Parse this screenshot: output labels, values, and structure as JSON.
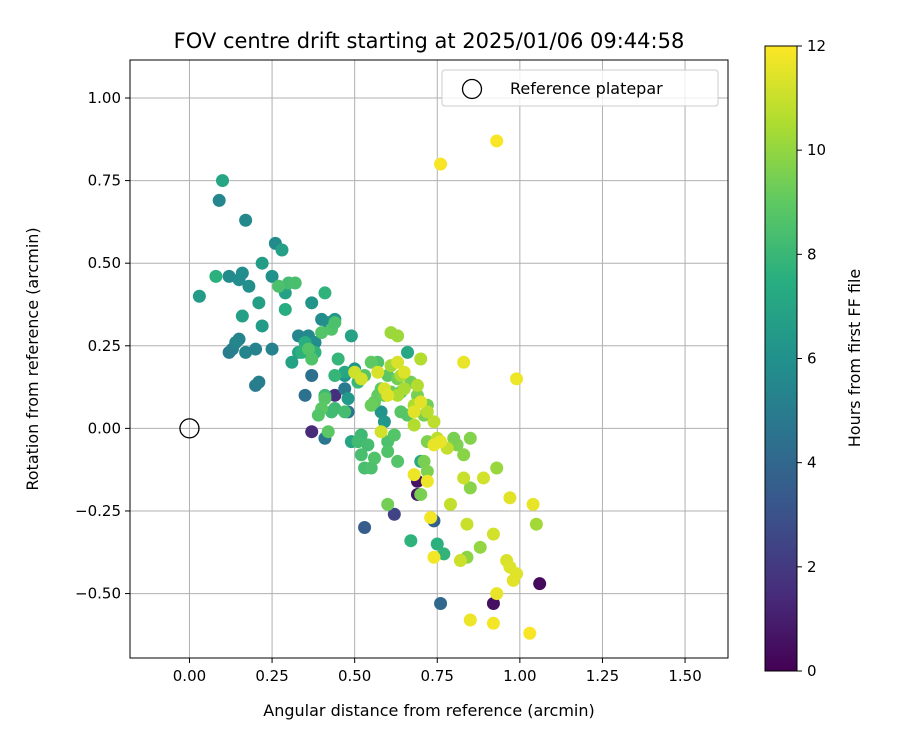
{
  "chart_data": {
    "type": "scatter",
    "title": "FOV centre drift starting at 2025/01/06 09:44:58",
    "xlabel": "Angular distance from reference (arcmin)",
    "ylabel": "Rotation from reference (arcmin)",
    "xlim": [
      -0.18,
      1.63
    ],
    "ylim": [
      -0.695,
      1.115
    ],
    "xticks": [
      0.0,
      0.25,
      0.5,
      0.75,
      1.0,
      1.25,
      1.5
    ],
    "yticks": [
      -0.5,
      -0.25,
      0.0,
      0.25,
      0.5,
      0.75,
      1.0
    ],
    "xtick_labels": [
      "0.00",
      "0.25",
      "0.50",
      "0.75",
      "1.00",
      "1.25",
      "1.50"
    ],
    "ytick_labels": [
      "−0.50",
      "−0.25",
      "0.00",
      "0.25",
      "0.50",
      "0.75",
      "1.00"
    ],
    "grid": true,
    "legend": {
      "label": "Reference platepar",
      "placement": "top-right"
    },
    "reference_point": {
      "x": 0.0,
      "y": 0.0
    },
    "colorbar": {
      "label": "Hours from first FF file",
      "colormap": "viridis",
      "range": [
        0,
        12
      ],
      "ticks": [
        0,
        2,
        4,
        6,
        8,
        10,
        12
      ],
      "tick_labels": [
        "0",
        "2",
        "4",
        "6",
        "8",
        "10",
        "12"
      ]
    },
    "points": [
      [
        1.06,
        -0.47,
        0.3
      ],
      [
        0.92,
        -0.53,
        0.5
      ],
      [
        0.69,
        -0.16,
        0.6
      ],
      [
        0.69,
        -0.2,
        0.7
      ],
      [
        0.37,
        -0.01,
        1.4
      ],
      [
        0.44,
        0.1,
        1.6
      ],
      [
        0.62,
        -0.26,
        2.4
      ],
      [
        0.53,
        -0.3,
        3.5
      ],
      [
        0.74,
        -0.28,
        3.7
      ],
      [
        0.76,
        -0.53,
        4.1
      ],
      [
        0.41,
        -0.03,
        4.7
      ],
      [
        0.48,
        0.05,
        4.6
      ],
      [
        0.37,
        0.16,
        4.4
      ],
      [
        0.35,
        0.1,
        4.5
      ],
      [
        0.47,
        0.12,
        4.9
      ],
      [
        0.2,
        0.13,
        5.0
      ],
      [
        0.21,
        0.14,
        5.1
      ],
      [
        0.13,
        0.24,
        5.2
      ],
      [
        0.12,
        0.23,
        5.1
      ],
      [
        0.15,
        0.27,
        5.3
      ],
      [
        0.14,
        0.26,
        5.4
      ],
      [
        0.17,
        0.23,
        5.4
      ],
      [
        0.2,
        0.24,
        5.3
      ],
      [
        0.25,
        0.24,
        5.3
      ],
      [
        0.09,
        0.69,
        5.5
      ],
      [
        0.17,
        0.63,
        5.6
      ],
      [
        0.12,
        0.46,
        5.7
      ],
      [
        0.15,
        0.45,
        5.8
      ],
      [
        0.16,
        0.47,
        5.8
      ],
      [
        0.18,
        0.43,
        5.9
      ],
      [
        0.26,
        0.56,
        5.7
      ],
      [
        0.25,
        0.46,
        6.0
      ],
      [
        0.33,
        0.28,
        5.5
      ],
      [
        0.36,
        0.28,
        5.6
      ],
      [
        0.38,
        0.26,
        5.8
      ],
      [
        0.4,
        0.33,
        5.8
      ],
      [
        0.42,
        0.32,
        5.9
      ],
      [
        0.37,
        0.38,
        6.2
      ],
      [
        0.44,
        0.33,
        6.3
      ],
      [
        0.47,
        0.16,
        6.1
      ],
      [
        0.5,
        0.18,
        6.2
      ],
      [
        0.48,
        0.09,
        6.4
      ],
      [
        0.58,
        0.05,
        6.2
      ],
      [
        0.59,
        0.02,
        6.3
      ],
      [
        0.22,
        0.31,
        6.5
      ],
      [
        0.03,
        0.4,
        6.5
      ],
      [
        0.22,
        0.5,
        6.6
      ],
      [
        0.21,
        0.38,
        6.7
      ],
      [
        0.16,
        0.34,
        6.8
      ],
      [
        0.1,
        0.75,
        7.0
      ],
      [
        0.28,
        0.54,
        6.8
      ],
      [
        0.29,
        0.41,
        6.9
      ],
      [
        0.31,
        0.2,
        6.9
      ],
      [
        0.33,
        0.23,
        7.0
      ],
      [
        0.49,
        0.28,
        6.9
      ],
      [
        0.47,
        0.17,
        7.1
      ],
      [
        0.49,
        -0.04,
        7.0
      ],
      [
        0.66,
        0.23,
        7.2
      ],
      [
        0.7,
        -0.1,
        7.2
      ],
      [
        0.75,
        -0.35,
        7.6
      ],
      [
        0.67,
        -0.34,
        7.7
      ],
      [
        0.77,
        -0.38,
        7.8
      ],
      [
        0.29,
        0.36,
        7.4
      ],
      [
        0.08,
        0.46,
        7.6
      ],
      [
        0.41,
        0.41,
        7.7
      ],
      [
        0.35,
        0.26,
        7.5
      ],
      [
        0.34,
        0.23,
        7.6
      ],
      [
        0.38,
        0.23,
        7.7
      ],
      [
        0.45,
        0.21,
        7.9
      ],
      [
        0.44,
        0.16,
        7.9
      ],
      [
        0.51,
        0.14,
        8.0
      ],
      [
        0.44,
        0.06,
        8.1
      ],
      [
        0.41,
        0.1,
        8.1
      ],
      [
        0.43,
        0.05,
        8.2
      ],
      [
        0.47,
        0.05,
        8.3
      ],
      [
        0.52,
        -0.02,
        8.1
      ],
      [
        0.51,
        -0.04,
        8.2
      ],
      [
        0.54,
        -0.05,
        8.3
      ],
      [
        0.52,
        -0.08,
        8.4
      ],
      [
        0.53,
        -0.12,
        8.4
      ],
      [
        0.55,
        -0.12,
        8.5
      ],
      [
        0.56,
        -0.09,
        8.6
      ],
      [
        0.6,
        -0.04,
        8.5
      ],
      [
        0.6,
        -0.07,
        8.6
      ],
      [
        0.62,
        -0.02,
        8.7
      ],
      [
        0.63,
        -0.1,
        8.7
      ],
      [
        0.66,
        0.04,
        8.8
      ],
      [
        0.64,
        0.05,
        8.8
      ],
      [
        0.64,
        0.11,
        8.9
      ],
      [
        0.6,
        0.16,
        8.9
      ],
      [
        0.57,
        0.2,
        8.6
      ],
      [
        0.53,
        0.16,
        8.8
      ],
      [
        0.41,
        0.09,
        8.8
      ],
      [
        0.4,
        0.06,
        8.9
      ],
      [
        0.42,
        -0.01,
        8.9
      ],
      [
        0.39,
        0.04,
        8.7
      ],
      [
        0.43,
        0.3,
        8.6
      ],
      [
        0.44,
        0.32,
        8.5
      ],
      [
        0.36,
        0.24,
        8.7
      ],
      [
        0.37,
        0.21,
        8.6
      ],
      [
        0.3,
        0.44,
        8.3
      ],
      [
        0.32,
        0.44,
        8.4
      ],
      [
        0.27,
        0.43,
        8.5
      ],
      [
        0.4,
        0.29,
        8.7
      ],
      [
        0.55,
        0.2,
        9.0
      ],
      [
        0.57,
        0.1,
        9.1
      ],
      [
        0.58,
        0.12,
        9.0
      ],
      [
        0.56,
        0.08,
        9.1
      ],
      [
        0.55,
        0.07,
        9.2
      ],
      [
        0.59,
        0.1,
        9.2
      ],
      [
        0.61,
        0.11,
        9.3
      ],
      [
        0.63,
        0.15,
        9.4
      ],
      [
        0.67,
        0.14,
        9.4
      ],
      [
        0.69,
        0.1,
        9.5
      ],
      [
        0.72,
        0.07,
        9.4
      ],
      [
        0.71,
        0.04,
        9.5
      ],
      [
        0.72,
        -0.04,
        9.6
      ],
      [
        0.71,
        -0.1,
        9.5
      ],
      [
        0.72,
        -0.13,
        9.6
      ],
      [
        0.6,
        -0.23,
        9.4
      ],
      [
        0.7,
        -0.2,
        9.5
      ],
      [
        0.81,
        -0.05,
        9.6
      ],
      [
        0.8,
        -0.03,
        9.5
      ],
      [
        0.85,
        -0.03,
        9.7
      ],
      [
        0.83,
        -0.08,
        9.8
      ],
      [
        0.85,
        -0.18,
        9.8
      ],
      [
        0.84,
        -0.39,
        9.9
      ],
      [
        0.88,
        -0.36,
        10.0
      ],
      [
        0.93,
        -0.12,
        10.1
      ],
      [
        1.05,
        -0.29,
        10.3
      ],
      [
        0.63,
        0.28,
        10.2
      ],
      [
        0.61,
        0.29,
        10.2
      ],
      [
        0.61,
        0.19,
        10.3
      ],
      [
        0.64,
        0.16,
        10.4
      ],
      [
        0.65,
        0.12,
        10.4
      ],
      [
        0.63,
        0.1,
        10.5
      ],
      [
        0.68,
        0.07,
        10.5
      ],
      [
        0.69,
        0.13,
        10.6
      ],
      [
        0.7,
        0.21,
        10.6
      ],
      [
        0.68,
        0.01,
        10.6
      ],
      [
        0.72,
        0.05,
        10.7
      ],
      [
        0.74,
        0.02,
        10.8
      ],
      [
        0.75,
        -0.03,
        10.8
      ],
      [
        0.78,
        -0.06,
        10.9
      ],
      [
        0.79,
        -0.23,
        10.9
      ],
      [
        0.83,
        -0.15,
        11.0
      ],
      [
        0.84,
        -0.29,
        11.0
      ],
      [
        0.82,
        -0.4,
        11.1
      ],
      [
        0.89,
        -0.15,
        11.2
      ],
      [
        0.92,
        -0.32,
        11.2
      ],
      [
        0.96,
        -0.4,
        11.3
      ],
      [
        0.97,
        -0.42,
        11.4
      ],
      [
        0.99,
        -0.44,
        11.4
      ],
      [
        0.98,
        -0.46,
        11.5
      ],
      [
        0.97,
        -0.21,
        11.5
      ],
      [
        1.04,
        -0.23,
        11.6
      ],
      [
        0.93,
        -0.5,
        11.6
      ],
      [
        0.85,
        -0.58,
        11.7
      ],
      [
        0.92,
        -0.59,
        11.8
      ],
      [
        1.03,
        -0.62,
        11.9
      ],
      [
        0.83,
        0.2,
        11.6
      ],
      [
        0.99,
        0.15,
        11.7
      ],
      [
        0.76,
        0.8,
        11.9
      ],
      [
        0.93,
        0.87,
        11.9
      ],
      [
        0.5,
        0.17,
        11.1
      ],
      [
        0.52,
        0.15,
        11.2
      ],
      [
        0.57,
        0.17,
        11.3
      ],
      [
        0.59,
        0.12,
        11.3
      ],
      [
        0.6,
        0.1,
        11.4
      ],
      [
        0.65,
        0.17,
        11.4
      ],
      [
        0.68,
        0.05,
        11.5
      ],
      [
        0.7,
        0.08,
        11.5
      ],
      [
        0.74,
        -0.05,
        11.6
      ],
      [
        0.76,
        -0.04,
        11.6
      ],
      [
        0.72,
        -0.16,
        11.7
      ],
      [
        0.68,
        -0.14,
        11.7
      ],
      [
        0.74,
        -0.39,
        11.8
      ],
      [
        0.73,
        -0.27,
        11.8
      ],
      [
        0.58,
        -0.01,
        11.2
      ],
      [
        0.63,
        0.2,
        11.3
      ]
    ]
  }
}
